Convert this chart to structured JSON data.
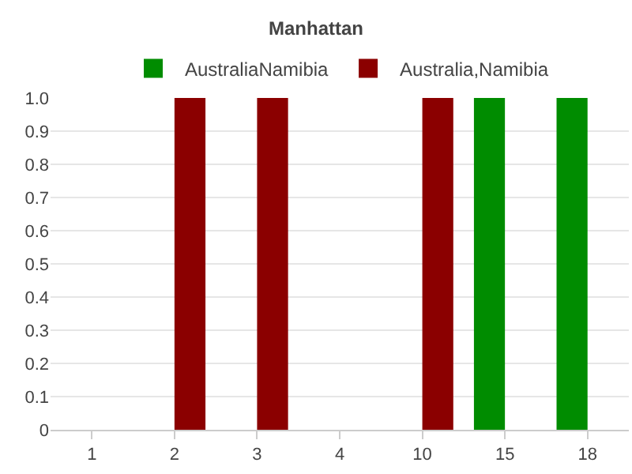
{
  "chart_data": {
    "type": "bar",
    "title": "Manhattan",
    "categories": [
      "1",
      "2",
      "3",
      "4",
      "10",
      "15",
      "18"
    ],
    "series": [
      {
        "name": "AustraliaNamibia",
        "color": "#008c00",
        "values": [
          0,
          0,
          0,
          0,
          0,
          1,
          1
        ]
      },
      {
        "name": "Australia,Namibia",
        "color": "#8b0000",
        "values": [
          0,
          1,
          1,
          0,
          1,
          0,
          0
        ]
      }
    ],
    "ylim": [
      0,
      1
    ],
    "yticks": [
      0,
      0.1,
      0.2,
      0.3,
      0.4,
      0.5,
      0.6,
      0.7,
      0.8,
      0.9,
      {
        "value": 1,
        "label": "1.0"
      }
    ],
    "grid": "y",
    "legend": "top"
  }
}
